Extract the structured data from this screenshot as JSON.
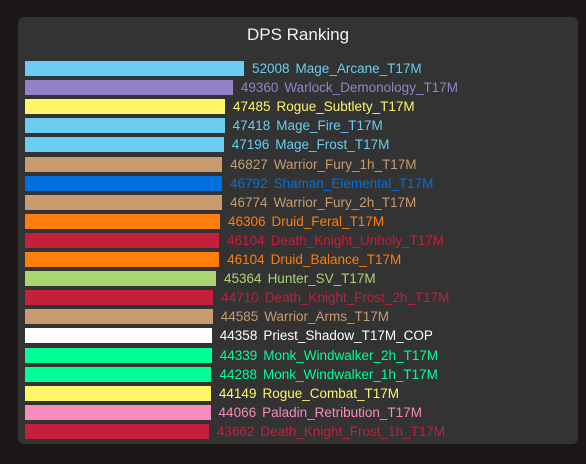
{
  "title": "DPS Ranking",
  "chart_data": {
    "type": "bar",
    "orientation": "horizontal",
    "title": "DPS Ranking",
    "grid": false,
    "categories": [
      "Mage_Arcane_T17M",
      "Warlock_Demonology_T17M",
      "Rogue_Subtlety_T17M",
      "Mage_Fire_T17M",
      "Mage_Frost_T17M",
      "Warrior_Fury_1h_T17M",
      "Shaman_Elemental_T17M",
      "Warrior_Fury_2h_T17M",
      "Druid_Feral_T17M",
      "Death_Knight_Unholy_T17M",
      "Druid_Balance_T17M",
      "Hunter_SV_T17M",
      "Death_Knight_Frost_2h_T17M",
      "Warrior_Arms_T17M",
      "Priest_Shadow_T17M_COP",
      "Monk_Windwalker_2h_T17M",
      "Monk_Windwalker_1h_T17M",
      "Rogue_Combat_T17M",
      "Paladin_Retribution_T17M",
      "Death_Knight_Frost_1h_T17M"
    ],
    "values": [
      52008,
      49360,
      47485,
      47418,
      47196,
      46827,
      46792,
      46774,
      46306,
      46104,
      46104,
      45364,
      44710,
      44585,
      44358,
      44339,
      44288,
      44149,
      44066,
      43662
    ],
    "colors": [
      "#69ccf0",
      "#9482c9",
      "#fff569",
      "#69ccf0",
      "#69ccf0",
      "#c79c6e",
      "#0070de",
      "#c79c6e",
      "#ff7d0a",
      "#c41f3b",
      "#ff7d0a",
      "#abd473",
      "#c41f3b",
      "#c79c6e",
      "#ffffff",
      "#00ff96",
      "#00ff96",
      "#fff569",
      "#f58cba",
      "#c41f3b"
    ]
  }
}
